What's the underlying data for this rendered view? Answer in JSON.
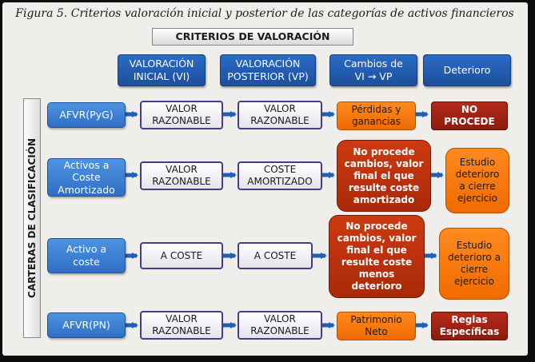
{
  "title": "Figura 5. Criterios valoración inicial y posterior de las categorías de activos financieros",
  "criterios": "CRITERIOS DE VALORACIÓN",
  "side_label": "CARTERAS DE CLASIFICACIÓN",
  "columns": [
    {
      "lines": [
        "VALORACIÓN",
        "INICIAL (VI)"
      ]
    },
    {
      "lines": [
        "VALORACIÓN",
        "POSTERIOR (VP)"
      ]
    },
    {
      "lines": [
        "Cambios de",
        "VI → VP"
      ]
    },
    {
      "lines": [
        "Deterioro"
      ]
    }
  ],
  "rows": [
    {
      "name": [
        "AFVR(PyG)"
      ],
      "vi": [
        "VALOR",
        "RAZONABLE"
      ],
      "vp": [
        "VALOR",
        "RAZONABLE"
      ],
      "cambios": [
        "Pérdidas y",
        "ganancias"
      ],
      "deterioro": [
        "NO",
        "PROCEDE"
      ]
    },
    {
      "name": [
        "Activos a",
        "Coste",
        "Amortizado"
      ],
      "vi": [
        "VALOR",
        "RAZONABLE"
      ],
      "vp": [
        "COSTE",
        "AMORTIZADO"
      ],
      "cambios": [
        "No procede",
        "cambios, valor",
        "final el que",
        "resulte coste",
        "amortizado"
      ],
      "deterioro": [
        "Estudio",
        "deterioro",
        "a cierre",
        "ejercicio"
      ]
    },
    {
      "name": [
        "Activo a",
        "coste"
      ],
      "vi": [
        "A COSTE"
      ],
      "vp": [
        "A COSTE"
      ],
      "cambios": [
        "No procede",
        "cambios, valor",
        "final el que",
        "resulte coste",
        "menos",
        "deterioro"
      ],
      "deterioro": [
        "Estudio",
        "deterioro a",
        "cierre",
        "ejercicio"
      ]
    },
    {
      "name": [
        "AFVR(PN)"
      ],
      "vi": [
        "VALOR",
        "RAZONABLE"
      ],
      "vp": [
        "VALOR",
        "RAZONABLE"
      ],
      "cambios": [
        "Patrimonio",
        "Neto"
      ],
      "deterioro": [
        "Reglas",
        "Específicas"
      ]
    }
  ],
  "colors": {
    "header_blue": "#2a6cc6",
    "row_blue": "#3f82d6",
    "value_border": "#4a3a8c",
    "orange": "#f57a10",
    "red": "#b5300e",
    "arrow_blue": "#1f5fb5"
  }
}
